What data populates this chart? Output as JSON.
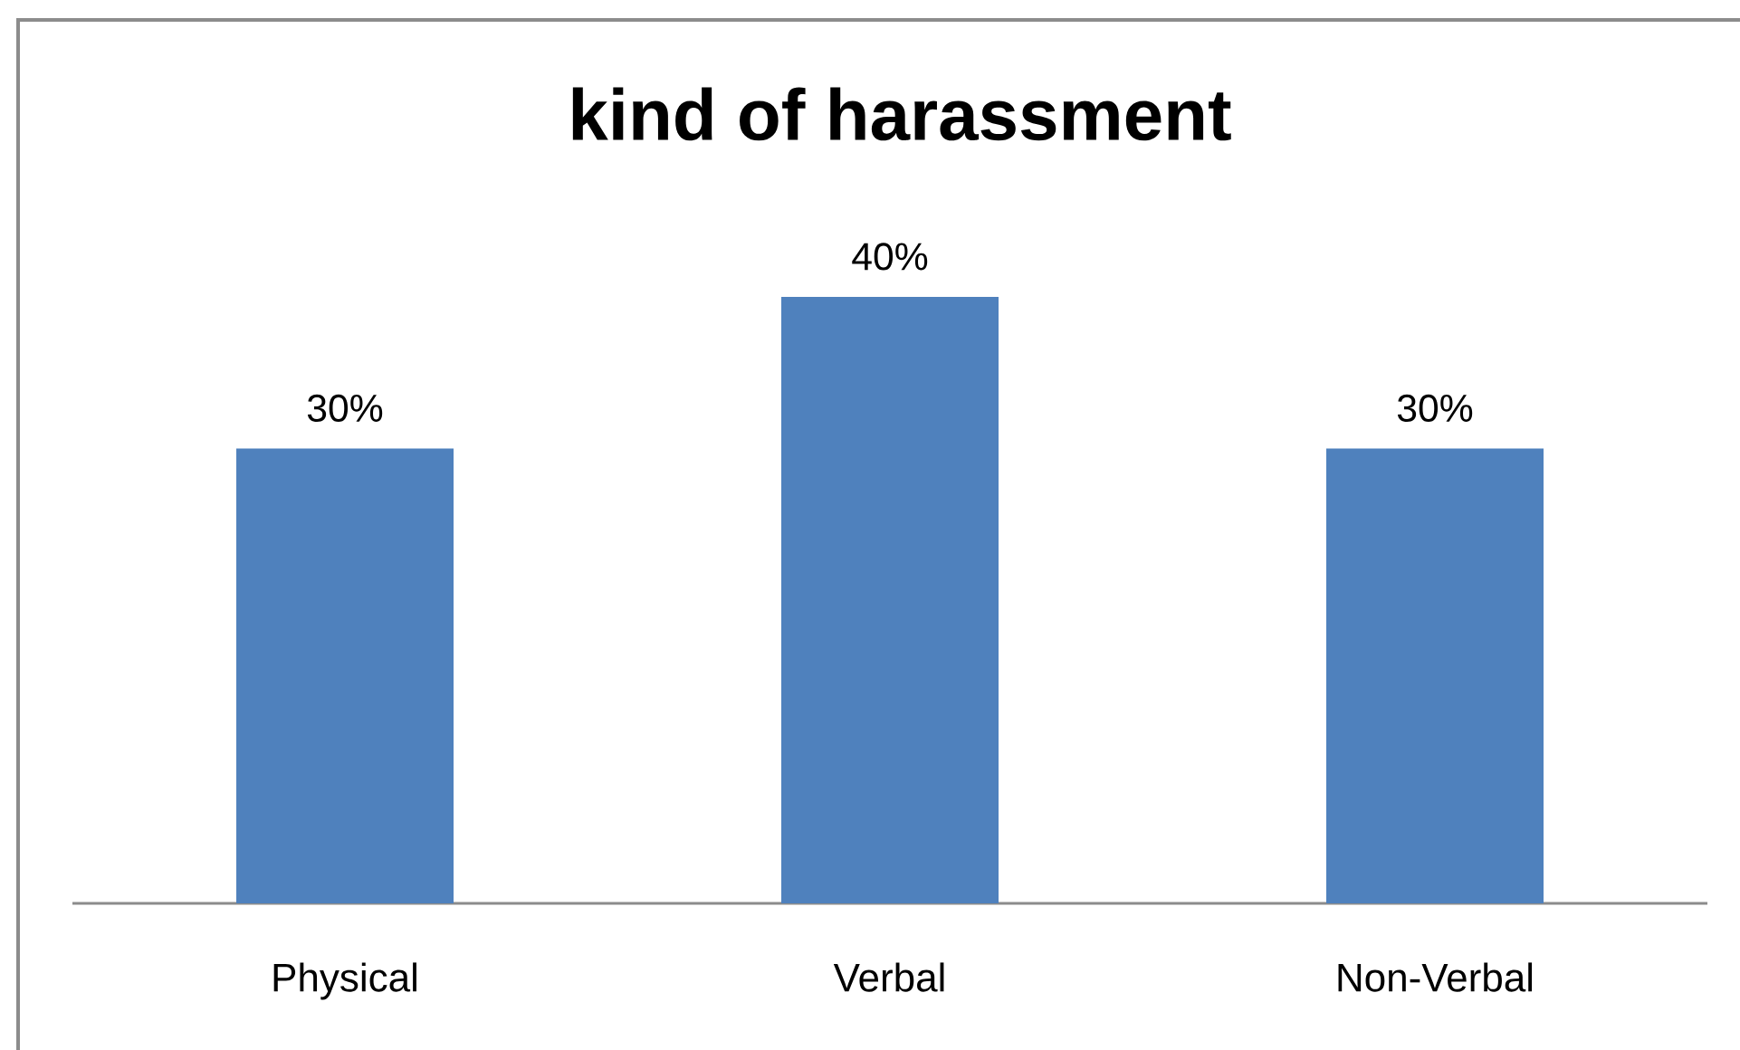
{
  "chart_data": {
    "type": "bar",
    "title": "kind of harassment",
    "categories": [
      "Physical",
      "Verbal",
      "Non-Verbal"
    ],
    "values": [
      30,
      40,
      30
    ],
    "value_labels": [
      "30%",
      "40%",
      "30%"
    ],
    "color": "#4f81bd"
  }
}
